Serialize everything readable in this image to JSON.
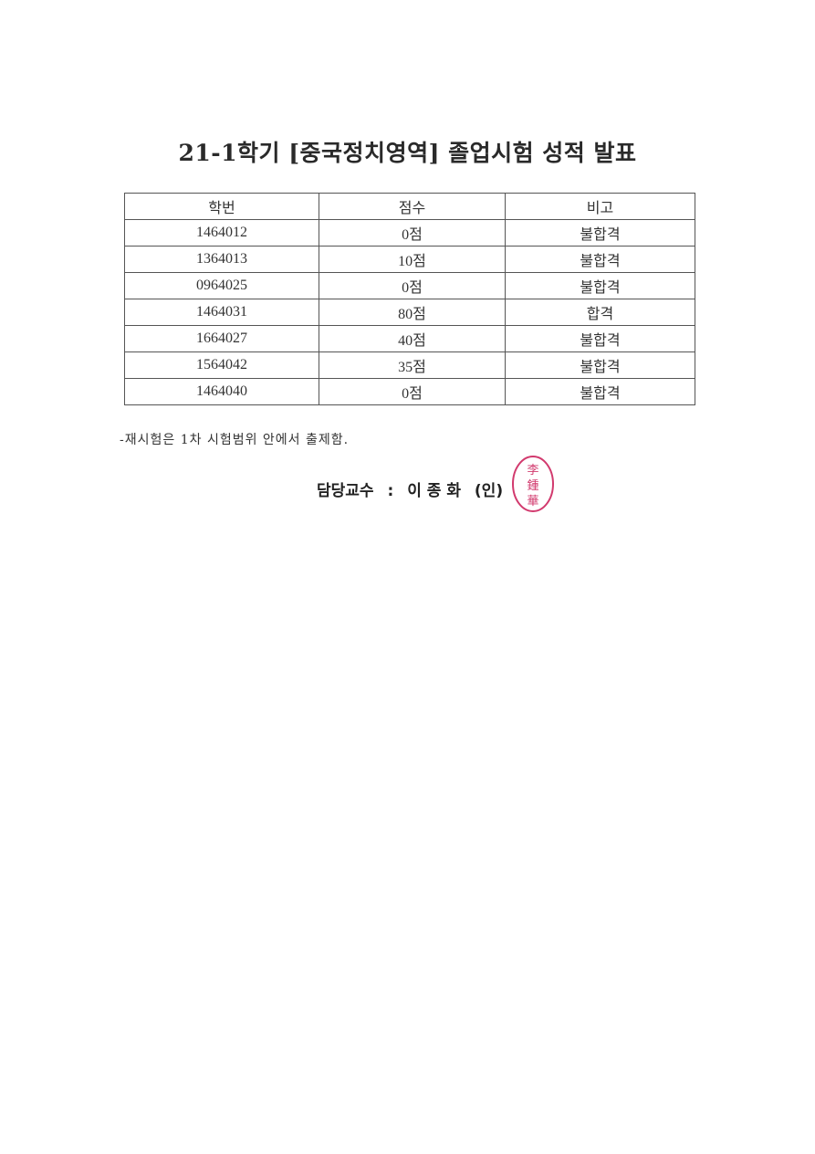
{
  "title": "21-1학기 [중국정치영역] 졸업시험 성적 발표",
  "table": {
    "headers": [
      "학번",
      "점수",
      "비고"
    ],
    "rows": [
      [
        "1464012",
        "0점",
        "불합격"
      ],
      [
        "1364013",
        "10점",
        "불합격"
      ],
      [
        "0964025",
        "0점",
        "불합격"
      ],
      [
        "1464031",
        "80점",
        "합격"
      ],
      [
        "1664027",
        "40점",
        "불합격"
      ],
      [
        "1564042",
        "35점",
        "불합격"
      ],
      [
        "1464040",
        "0점",
        "불합격"
      ]
    ]
  },
  "note": "-재시험은 1차 시험범위 안에서 출제함.",
  "signature": {
    "label": "담당교수",
    "separator": ":",
    "name": "이 종 화",
    "seal_mark": "(인)",
    "seal_text": "李鍾華",
    "seal_color": "#d23a6e"
  }
}
